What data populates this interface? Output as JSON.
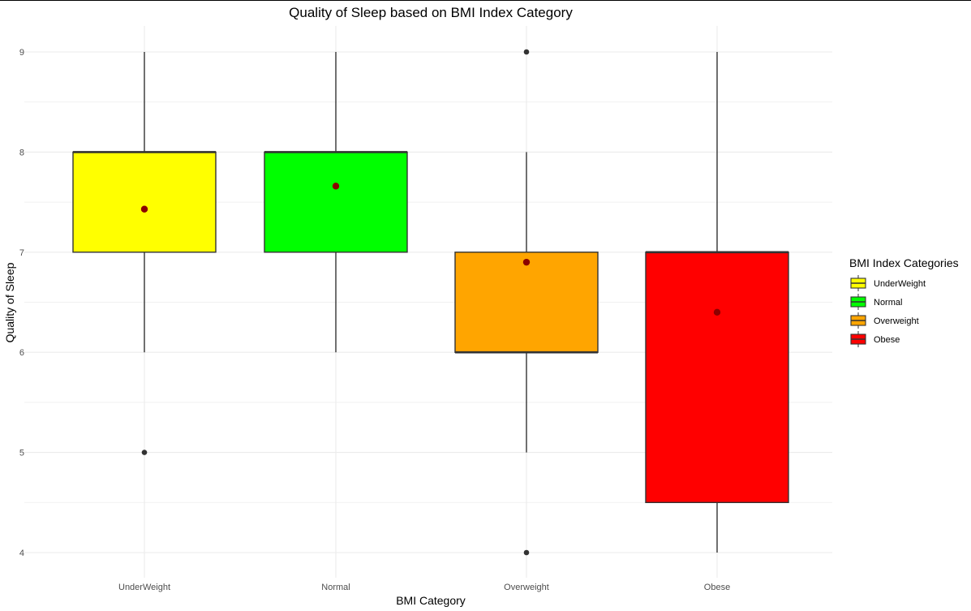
{
  "chart_data": {
    "type": "box",
    "title": "Quality of Sleep based on BMI Index Category",
    "xlabel": "BMI Category",
    "ylabel": "Quality of Sleep",
    "categories": [
      "UnderWeight",
      "Normal",
      "Overweight",
      "Obese"
    ],
    "ylim": [
      3.75,
      9.25
    ],
    "yticks": [
      4,
      5,
      6,
      7,
      8,
      9
    ],
    "grid": true,
    "legend": {
      "title": "BMI Index Categories",
      "placement": "right",
      "entries": [
        "UnderWeight",
        "Normal",
        "Overweight",
        "Obese"
      ]
    },
    "boxes": [
      {
        "category": "UnderWeight",
        "color": "#FFFF00",
        "whisker_low": 6,
        "q1": 7,
        "median": 8,
        "q3": 8,
        "whisker_high": 9,
        "mean": 7.43,
        "outliers": [
          5
        ]
      },
      {
        "category": "Normal",
        "color": "#00FF00",
        "whisker_low": 6,
        "q1": 7,
        "median": 8,
        "q3": 8,
        "whisker_high": 9,
        "mean": 7.66,
        "outliers": []
      },
      {
        "category": "Overweight",
        "color": "#FFA500",
        "whisker_low": 5,
        "q1": 6,
        "median": 6,
        "q3": 7,
        "whisker_high": 8,
        "mean": 6.9,
        "outliers": [
          9,
          4
        ]
      },
      {
        "category": "Obese",
        "color": "#FF0000",
        "whisker_low": 4,
        "q1": 4.5,
        "median": 7,
        "q3": 7,
        "whisker_high": 9,
        "mean": 6.4,
        "outliers": []
      }
    ],
    "mean_point_color": "#8B0000",
    "outlier_color": "#333333"
  }
}
